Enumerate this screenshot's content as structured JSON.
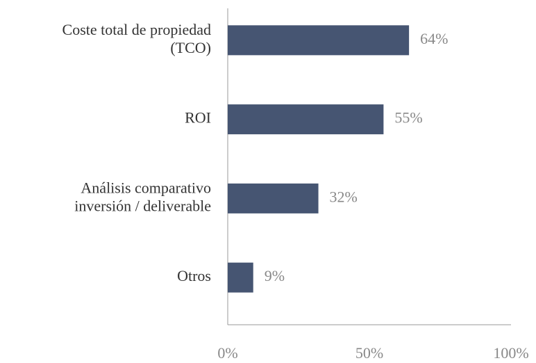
{
  "chart_data": {
    "type": "hbar",
    "categories": [
      "Coste total de propiedad\n(TCO)",
      "ROI",
      "Análisis comparativo\ninversión / deliverable",
      "Otros"
    ],
    "values": [
      64,
      55,
      32,
      9
    ],
    "value_labels": [
      "64%",
      "55%",
      "32%",
      "9%"
    ],
    "color": "#465572",
    "xlim": [
      0,
      100
    ],
    "xticks": [
      {
        "value": 0,
        "label": "0%"
      },
      {
        "value": 50,
        "label": "50%"
      },
      {
        "value": 100,
        "label": "100%"
      }
    ]
  }
}
